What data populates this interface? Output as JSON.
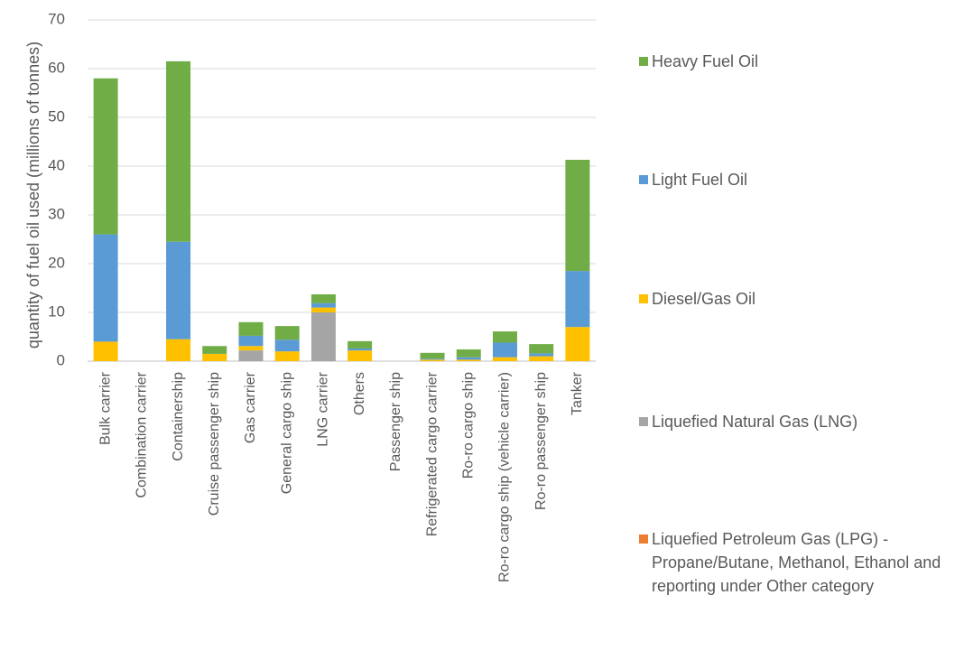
{
  "chart_data": {
    "type": "stacked_bar",
    "y_label": "quantity of fuel oil used (millions of tonnes)",
    "categories": [
      "Bulk carrier",
      "Combination carrier",
      "Containership",
      "Cruise passenger ship",
      "Gas carrier",
      "General cargo ship",
      "LNG carrier",
      "Others",
      "Passenger ship",
      "Refrigerated cargo carrier",
      "Ro-ro cargo ship",
      "Ro-ro cargo ship (vehicle carrier)",
      "Ro-ro passenger ship",
      "Tanker"
    ],
    "series": [
      {
        "name": "Heavy Fuel Oil",
        "color": "#70ad47",
        "values": [
          32,
          0,
          37,
          1.6,
          2.8,
          2.8,
          1.8,
          1.5,
          0,
          1.2,
          1.6,
          2.3,
          1.9,
          22.8
        ]
      },
      {
        "name": "Light Fuel Oil",
        "color": "#5b9bd5",
        "values": [
          22,
          0,
          20,
          0,
          2.1,
          2.4,
          0.9,
          0.4,
          0,
          0.2,
          0.5,
          3,
          0.6,
          11.5
        ]
      },
      {
        "name": "Diesel/Gas Oil",
        "color": "#ffc000",
        "values": [
          4,
          0,
          4.5,
          1.5,
          0.9,
          2,
          1,
          2.2,
          0,
          0.3,
          0.3,
          0.8,
          1,
          7
        ]
      },
      {
        "name": "Liquefied Natural Gas (LNG)",
        "color": "#a5a5a5",
        "values": [
          0,
          0,
          0,
          0,
          2.2,
          0,
          10,
          0,
          0,
          0,
          0,
          0,
          0,
          0
        ]
      },
      {
        "name": "Liquefied Petroleum Gas (LPG) - Propane/Butane, Methanol, Ethanol and reporting under Other category",
        "color": "#ed7d31",
        "values": [
          0,
          0,
          0,
          0,
          0,
          0,
          0,
          0,
          0,
          0,
          0,
          0,
          0,
          0
        ]
      }
    ],
    "ylim": [
      0,
      70
    ],
    "yticks": [
      0,
      10,
      20,
      30,
      40,
      50,
      60,
      70
    ],
    "grid": true,
    "legend": "right"
  }
}
